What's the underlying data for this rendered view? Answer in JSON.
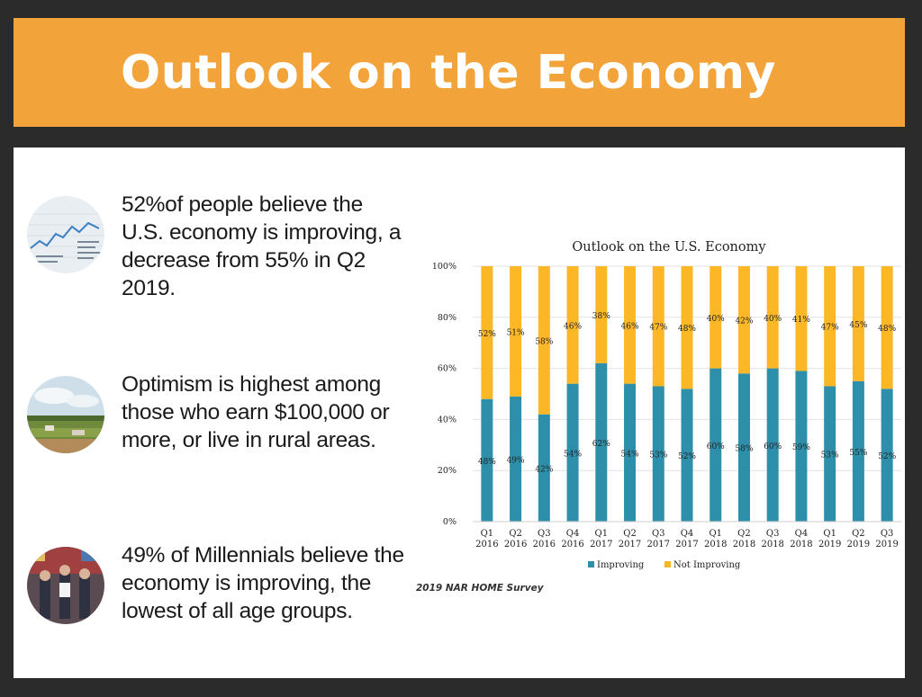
{
  "banner": {
    "title": "Outlook on the Economy"
  },
  "facts": [
    {
      "text": "52%of people believe the U.S. economy is improving, a decrease from 55% in Q2 2019.",
      "image": "stock-chart-photo"
    },
    {
      "text": "Optimism is highest among those who earn $100,000 or more, or live in rural areas.",
      "image": "rural-landscape-photo"
    },
    {
      "text": "49% of Millennials believe the economy is improving, the lowest of all age groups.",
      "image": "young-people-photo"
    }
  ],
  "source": "2019 NAR HOME Survey",
  "colors": {
    "banner": "#f2a33a",
    "improving": "#2e8faa",
    "not_improving": "#fbb726",
    "frame": "#2b2b2b"
  },
  "chart_data": {
    "type": "bar",
    "stacked": true,
    "title": "Outlook on the U.S. Economy",
    "categories": [
      [
        "Q1",
        "2016"
      ],
      [
        "Q2",
        "2016"
      ],
      [
        "Q3",
        "2016"
      ],
      [
        "Q4",
        "2016"
      ],
      [
        "Q1",
        "2017"
      ],
      [
        "Q2",
        "2017"
      ],
      [
        "Q3",
        "2017"
      ],
      [
        "Q4",
        "2017"
      ],
      [
        "Q1",
        "2018"
      ],
      [
        "Q2",
        "2018"
      ],
      [
        "Q3",
        "2018"
      ],
      [
        "Q4",
        "2018"
      ],
      [
        "Q1",
        "2019"
      ],
      [
        "Q2",
        "2019"
      ],
      [
        "Q3",
        "2019"
      ]
    ],
    "series": [
      {
        "name": "Improving",
        "values": [
          48,
          49,
          42,
          54,
          62,
          54,
          53,
          52,
          60,
          58,
          60,
          59,
          53,
          55,
          52
        ],
        "labels": [
          "48%",
          "49%",
          "42%",
          "54%",
          "62%",
          "54%",
          "53%",
          "52%",
          "60%",
          "58%",
          "60%",
          "59%",
          "53%",
          "55%",
          "52%"
        ]
      },
      {
        "name": "Not Improving",
        "values": [
          52,
          51,
          58,
          46,
          38,
          46,
          47,
          48,
          40,
          42,
          40,
          41,
          47,
          45,
          48
        ],
        "labels": [
          "52%",
          "51%",
          "58%",
          "46%",
          "38%",
          "46%",
          "47%",
          "48%",
          "40%",
          "42%",
          "40%",
          "41%",
          "47%",
          "45%",
          "48%"
        ]
      }
    ],
    "ylim": [
      0,
      100
    ],
    "yticks": [
      "0%",
      "20%",
      "40%",
      "60%",
      "80%",
      "100%"
    ],
    "grid": true,
    "legend": "bottom"
  }
}
